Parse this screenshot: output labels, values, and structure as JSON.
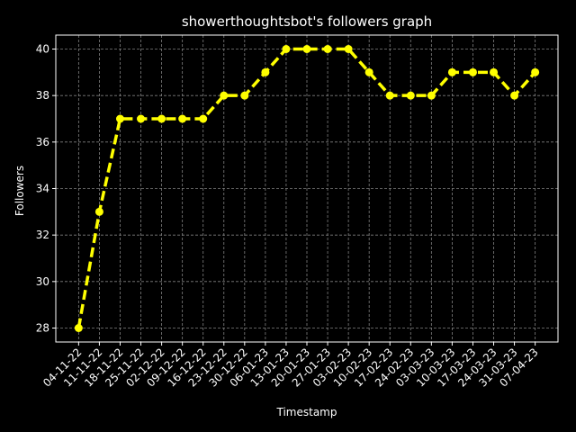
{
  "chart_data": {
    "type": "line",
    "title": "showerthoughtsbot's followers graph",
    "xlabel": "Timestamp",
    "ylabel": "Followers",
    "categories": [
      "04-11-22",
      "11-11-22",
      "18-11-22",
      "25-11-22",
      "02-12-22",
      "09-12-22",
      "16-12-22",
      "23-12-22",
      "30-12-22",
      "06-01-23",
      "13-01-23",
      "20-01-23",
      "27-01-23",
      "03-02-23",
      "10-02-23",
      "17-02-23",
      "24-02-23",
      "03-03-23",
      "10-03-23",
      "17-03-23",
      "24-03-23",
      "31-03-23",
      "07-04-23"
    ],
    "series": [
      {
        "values": [
          28,
          33,
          37,
          37,
          37,
          37,
          37,
          38,
          38,
          39,
          40,
          40,
          40,
          40,
          39,
          38,
          38,
          38,
          39,
          39,
          39,
          38,
          39
        ]
      }
    ],
    "ylim": [
      27.4,
      40.6
    ],
    "yticks": [
      28,
      30,
      32,
      34,
      36,
      38,
      40
    ],
    "grid": true,
    "line_style": "dashed",
    "marker": "circle"
  },
  "colors": {
    "background": "#000000",
    "series": "#ffff00",
    "grid": "#808080",
    "text": "#ffffff"
  }
}
